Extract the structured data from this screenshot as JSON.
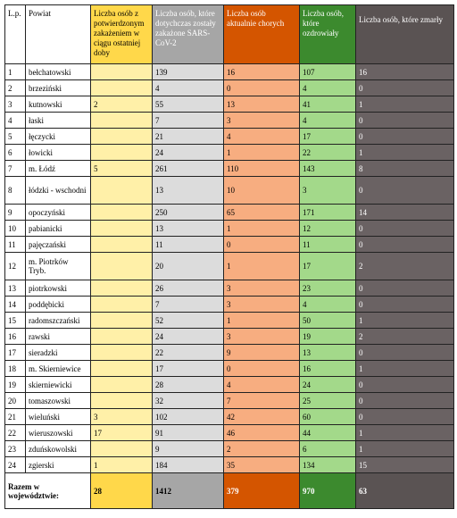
{
  "table": {
    "header": [
      "L.p.",
      "Powiat",
      "Liczba osób z potwierdzonym zakażeniem w ciągu ostatniej doby",
      "Liczba osób, które dotychczas zostały zakażone SARS-CoV-2",
      "Liczba osób aktualnie chorych",
      "Liczba osób, które ozdrowiały",
      "Liczba osób, które zmarły"
    ],
    "rows": [
      [
        1,
        "bełchatowski",
        null,
        139,
        16,
        107,
        16
      ],
      [
        2,
        "brzeziński",
        null,
        4,
        0,
        4,
        0
      ],
      [
        3,
        "kutnowski",
        2,
        55,
        13,
        41,
        1
      ],
      [
        4,
        "łaski",
        null,
        7,
        3,
        4,
        0
      ],
      [
        5,
        "łęczycki",
        null,
        21,
        4,
        17,
        0
      ],
      [
        6,
        "łowicki",
        null,
        24,
        1,
        22,
        1
      ],
      [
        7,
        "m. Łódź",
        5,
        261,
        110,
        143,
        8
      ],
      [
        8,
        "łódzki - wschodni",
        null,
        13,
        10,
        3,
        0
      ],
      [
        9,
        "opoczyński",
        null,
        250,
        65,
        171,
        14
      ],
      [
        10,
        "pabianicki",
        null,
        13,
        1,
        12,
        0
      ],
      [
        11,
        "pajęczański",
        null,
        11,
        0,
        11,
        0
      ],
      [
        12,
        "m. Piotrków Tryb.",
        null,
        20,
        1,
        17,
        2
      ],
      [
        13,
        "piotrkowski",
        null,
        26,
        3,
        23,
        0
      ],
      [
        14,
        "poddębicki",
        null,
        7,
        3,
        4,
        0
      ],
      [
        15,
        "radomszczański",
        null,
        52,
        1,
        50,
        1
      ],
      [
        16,
        "rawski",
        null,
        24,
        3,
        19,
        2
      ],
      [
        17,
        "sieradzki",
        null,
        22,
        9,
        13,
        0
      ],
      [
        18,
        "m. Skierniewice",
        null,
        17,
        0,
        16,
        1
      ],
      [
        19,
        "skierniewicki",
        null,
        28,
        4,
        24,
        0
      ],
      [
        20,
        "tomaszowski",
        null,
        32,
        7,
        25,
        0
      ],
      [
        21,
        "wieluński",
        3,
        102,
        42,
        60,
        0
      ],
      [
        22,
        "wieruszowski",
        17,
        91,
        46,
        44,
        1
      ],
      [
        23,
        "zduńskowolski",
        null,
        9,
        2,
        6,
        1
      ],
      [
        24,
        "zgierski",
        1,
        184,
        35,
        134,
        15
      ]
    ],
    "total": [
      "Razem w województwie:",
      28,
      1412,
      379,
      970,
      63
    ]
  }
}
